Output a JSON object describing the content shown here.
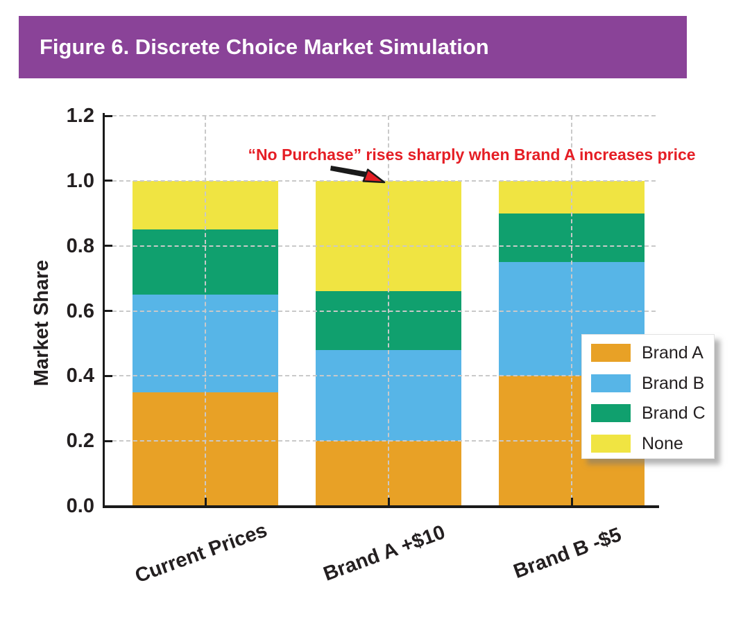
{
  "banner": {
    "title": "Figure 6. Discrete Choice Market Simulation",
    "background_color": "#8A4398",
    "text_color": "#FFFFFF"
  },
  "annotation": {
    "text": "“No Purchase” rises sharply when Brand A increases price",
    "color": "#E51E25",
    "arrow_target": "top of Brand A +$10 bar at 1.0"
  },
  "chart_data": {
    "type": "bar",
    "stacked": true,
    "title": "Figure 6. Discrete Choice Market Simulation",
    "categories": [
      "Current Prices",
      "Brand A +$10",
      "Brand B -$5"
    ],
    "series": [
      {
        "name": "Brand A",
        "color": "#E8A126",
        "values": [
          0.35,
          0.2,
          0.4
        ]
      },
      {
        "name": "Brand B",
        "color": "#57B5E7",
        "values": [
          0.3,
          0.28,
          0.35
        ]
      },
      {
        "name": "Brand C",
        "color": "#10A06E",
        "values": [
          0.2,
          0.18,
          0.15
        ]
      },
      {
        "name": "None",
        "color": "#F0E442",
        "values": [
          0.15,
          0.34,
          0.1
        ]
      }
    ],
    "totals_per_category": [
      1.0,
      1.0,
      1.0
    ],
    "xlabel": "",
    "ylabel": "Market Share",
    "ylim": [
      0,
      1.2
    ],
    "yticks": [
      "0.0",
      "0.2",
      "0.4",
      "0.6",
      "0.8",
      "1.0",
      "1.2"
    ],
    "grid": "dashed light-gray horizontal lines at each y tick and vertical lines at each category center, drawn over bars",
    "legend_position": "right side, white box overlapping plot",
    "axis_color": "#1A1A1A",
    "grid_color": "#C9C9C9"
  },
  "legend": {
    "entries": [
      {
        "label": "Brand A",
        "color": "#E8A126"
      },
      {
        "label": "Brand B",
        "color": "#57B5E7"
      },
      {
        "label": "Brand C",
        "color": "#10A06E"
      },
      {
        "label": "None",
        "color": "#F0E442"
      }
    ]
  }
}
